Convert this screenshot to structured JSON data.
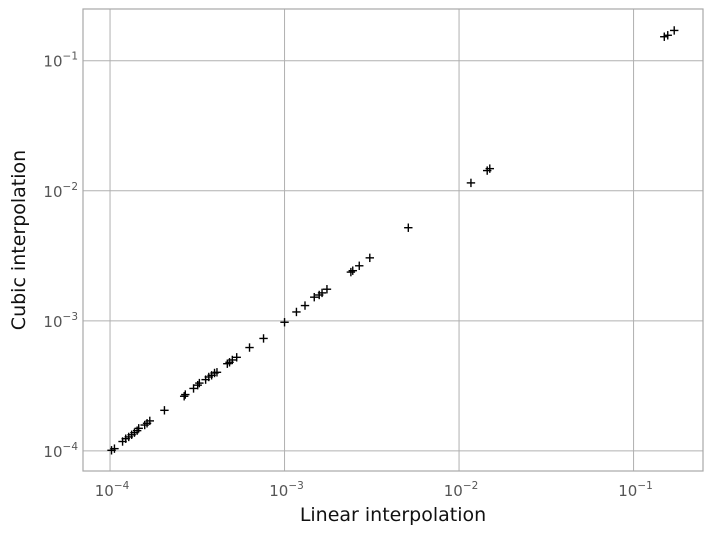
{
  "chart_data": {
    "type": "scatter",
    "xlabel": "Linear interpolation",
    "ylabel": "Cubic interpolation",
    "xscale": "log",
    "yscale": "log",
    "xlim": [
      7e-05,
      0.25
    ],
    "ylim": [
      7e-05,
      0.25
    ],
    "grid": true,
    "marker": "+",
    "marker_color": "#000000",
    "x_ticks": [
      {
        "base": "10",
        "exp": "−4",
        "value": 0.0001
      },
      {
        "base": "10",
        "exp": "−3",
        "value": 0.001
      },
      {
        "base": "10",
        "exp": "−2",
        "value": 0.01
      },
      {
        "base": "10",
        "exp": "−1",
        "value": 0.1
      }
    ],
    "y_ticks": [
      {
        "base": "10",
        "exp": "−4",
        "value": 0.0001
      },
      {
        "base": "10",
        "exp": "−3",
        "value": 0.001
      },
      {
        "base": "10",
        "exp": "−2",
        "value": 0.01
      },
      {
        "base": "10",
        "exp": "−1",
        "value": 0.1
      }
    ],
    "points": [
      [
        0.000102,
        0.000101
      ],
      [
        0.000106,
        0.000104
      ],
      [
        0.000118,
        0.000118
      ],
      [
        0.000123,
        0.000124
      ],
      [
        0.000128,
        0.000128
      ],
      [
        0.000133,
        0.000133
      ],
      [
        0.000138,
        0.000138
      ],
      [
        0.000143,
        0.000143
      ],
      [
        0.000146,
        0.000149
      ],
      [
        0.000158,
        0.000158
      ],
      [
        0.000163,
        0.000163
      ],
      [
        0.000169,
        0.00017
      ],
      [
        0.000205,
        0.000205
      ],
      [
        0.000266,
        0.000263
      ],
      [
        0.00027,
        0.000271
      ],
      [
        0.000301,
        0.000302
      ],
      [
        0.000318,
        0.00032
      ],
      [
        0.000325,
        0.000332
      ],
      [
        0.000353,
        0.000353
      ],
      [
        0.000368,
        0.00037
      ],
      [
        0.000382,
        0.000381
      ],
      [
        0.000397,
        0.000397
      ],
      [
        0.00041,
        0.000402
      ],
      [
        0.00047,
        0.000468
      ],
      [
        0.000484,
        0.00048
      ],
      [
        0.000502,
        0.0005
      ],
      [
        0.000532,
        0.000524
      ],
      [
        0.00063,
        0.000623
      ],
      [
        0.000758,
        0.000732
      ],
      [
        0.001,
        0.000975
      ],
      [
        0.00117,
        0.00117
      ],
      [
        0.00131,
        0.00131
      ],
      [
        0.00148,
        0.00152
      ],
      [
        0.00158,
        0.00158
      ],
      [
        0.00164,
        0.00164
      ],
      [
        0.00175,
        0.00175
      ],
      [
        0.0024,
        0.00237
      ],
      [
        0.00246,
        0.00243
      ],
      [
        0.00268,
        0.00265
      ],
      [
        0.00308,
        0.00305
      ],
      [
        0.00512,
        0.0052
      ],
      [
        0.0117,
        0.0115
      ],
      [
        0.0145,
        0.0143
      ],
      [
        0.015,
        0.0148
      ],
      [
        0.15,
        0.153
      ],
      [
        0.157,
        0.157
      ],
      [
        0.171,
        0.171
      ]
    ]
  }
}
